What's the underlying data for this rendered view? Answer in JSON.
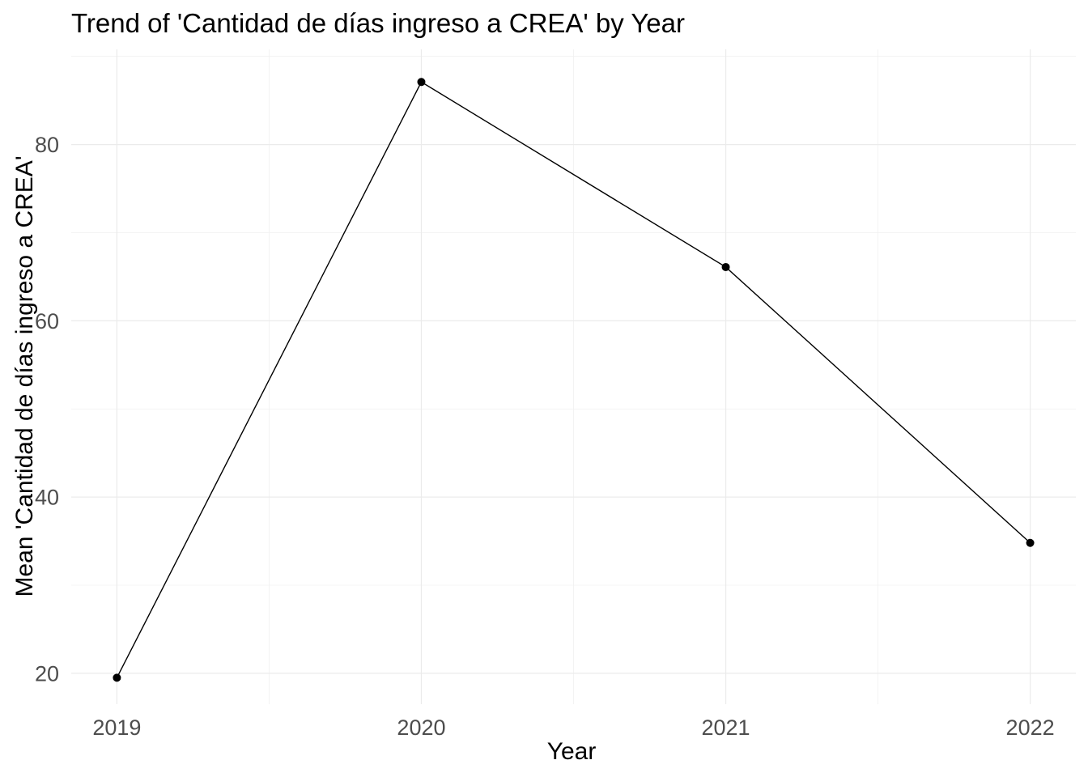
{
  "chart_data": {
    "type": "line",
    "title": "Trend of 'Cantidad de días ingreso a CREA' by Year",
    "xlabel": "Year",
    "ylabel": "Mean 'Cantidad de días ingreso a CREA'",
    "x": [
      2019,
      2020,
      2021,
      2022
    ],
    "x_tick_labels": [
      "2019",
      "2020",
      "2021",
      "2022"
    ],
    "series": [
      {
        "name": "Mean 'Cantidad de días ingreso a CREA'",
        "values": [
          19.5,
          87.1,
          66.1,
          34.8
        ]
      }
    ],
    "y_ticks": [
      20,
      40,
      60,
      80
    ],
    "y_minor_ticks": [
      30,
      50,
      70,
      90
    ],
    "x_minor_ticks": [
      2019.5,
      2020.5,
      2021.5
    ],
    "xlim": [
      2018.85,
      2022.15
    ],
    "ylim": [
      16.5,
      90.8
    ],
    "grid": "major-and-minor",
    "legend": false,
    "colors": {
      "line": "#000000",
      "point": "#000000",
      "grid_major": "#ebebeb",
      "grid_minor": "#f0f0f0",
      "tick_label": "#4d4d4d",
      "title": "#000000"
    }
  }
}
